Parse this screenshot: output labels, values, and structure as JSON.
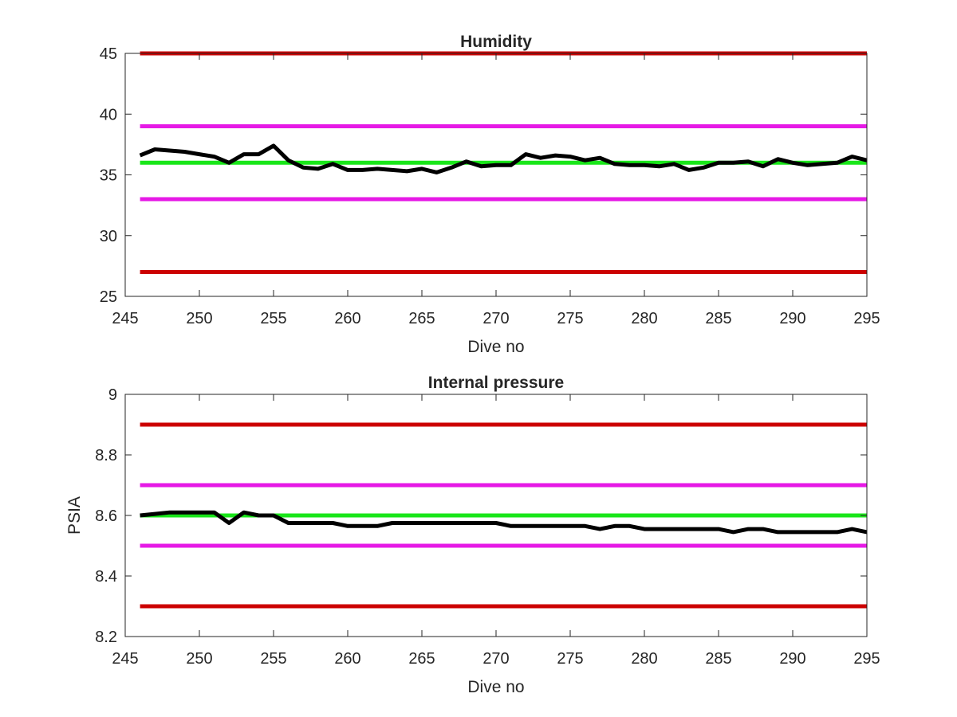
{
  "chart_data": [
    {
      "type": "line",
      "title": "Humidity",
      "xlabel": "Dive no",
      "ylabel": "",
      "xlim": [
        245,
        295
      ],
      "ylim": [
        25,
        45
      ],
      "xticks": [
        245,
        250,
        255,
        260,
        265,
        270,
        275,
        280,
        285,
        290,
        295
      ],
      "yticks": [
        25,
        30,
        35,
        40,
        45
      ],
      "xtick_labels": [
        "245",
        "250",
        "255",
        "260",
        "265",
        "270",
        "275",
        "280",
        "285",
        "290",
        "295"
      ],
      "ytick_labels": [
        "25",
        "30",
        "35",
        "40",
        "45"
      ],
      "grid": false,
      "reference_lines": [
        {
          "y": 45,
          "color": "#cc0000"
        },
        {
          "y": 39,
          "color": "#e619e6"
        },
        {
          "y": 36,
          "color": "#19e619"
        },
        {
          "y": 33,
          "color": "#e619e6"
        },
        {
          "y": 27,
          "color": "#cc0000"
        }
      ],
      "series": [
        {
          "color": "#000000",
          "x": [
            246,
            247,
            248,
            249,
            250,
            251,
            252,
            253,
            254,
            255,
            256,
            257,
            258,
            259,
            260,
            261,
            262,
            263,
            264,
            265,
            266,
            267,
            268,
            269,
            270,
            271,
            272,
            273,
            274,
            275,
            276,
            277,
            278,
            279,
            280,
            281,
            282,
            283,
            284,
            285,
            286,
            287,
            288,
            289,
            290,
            291,
            292,
            293,
            294,
            295
          ],
          "y": [
            36.6,
            37.1,
            37.0,
            36.9,
            36.7,
            36.5,
            36.0,
            36.7,
            36.7,
            37.4,
            36.2,
            35.6,
            35.5,
            35.9,
            35.4,
            35.4,
            35.5,
            35.4,
            35.3,
            35.5,
            35.2,
            35.6,
            36.1,
            35.7,
            35.8,
            35.8,
            36.7,
            36.4,
            36.6,
            36.5,
            36.2,
            36.4,
            35.9,
            35.8,
            35.8,
            35.7,
            35.9,
            35.4,
            35.6,
            36.0,
            36.0,
            36.1,
            35.7,
            36.3,
            36.0,
            35.8,
            35.9,
            36.0,
            36.5,
            36.2
          ]
        }
      ]
    },
    {
      "type": "line",
      "title": "Internal pressure",
      "xlabel": "Dive no",
      "ylabel": "PSIA",
      "xlim": [
        245,
        295
      ],
      "ylim": [
        8.2,
        9.0
      ],
      "xticks": [
        245,
        250,
        255,
        260,
        265,
        270,
        275,
        280,
        285,
        290,
        295
      ],
      "yticks": [
        8.2,
        8.4,
        8.6,
        8.8,
        9.0
      ],
      "xtick_labels": [
        "245",
        "250",
        "255",
        "260",
        "265",
        "270",
        "275",
        "280",
        "285",
        "290",
        "295"
      ],
      "ytick_labels": [
        "8.2",
        "8.4",
        "8.6",
        "8.8",
        "9"
      ],
      "grid": false,
      "reference_lines": [
        {
          "y": 8.9,
          "color": "#cc0000"
        },
        {
          "y": 8.7,
          "color": "#e619e6"
        },
        {
          "y": 8.6,
          "color": "#19e619"
        },
        {
          "y": 8.5,
          "color": "#e619e6"
        },
        {
          "y": 8.3,
          "color": "#cc0000"
        }
      ],
      "series": [
        {
          "color": "#000000",
          "x": [
            246,
            247,
            248,
            249,
            250,
            251,
            252,
            253,
            254,
            255,
            256,
            257,
            258,
            259,
            260,
            261,
            262,
            263,
            264,
            265,
            266,
            267,
            268,
            269,
            270,
            271,
            272,
            273,
            274,
            275,
            276,
            277,
            278,
            279,
            280,
            281,
            282,
            283,
            284,
            285,
            286,
            287,
            288,
            289,
            290,
            291,
            292,
            293,
            294,
            295
          ],
          "y": [
            8.6,
            8.605,
            8.61,
            8.61,
            8.61,
            8.61,
            8.575,
            8.61,
            8.6,
            8.6,
            8.575,
            8.575,
            8.575,
            8.575,
            8.565,
            8.565,
            8.565,
            8.575,
            8.575,
            8.575,
            8.575,
            8.575,
            8.575,
            8.575,
            8.575,
            8.565,
            8.565,
            8.565,
            8.565,
            8.565,
            8.565,
            8.555,
            8.565,
            8.565,
            8.555,
            8.555,
            8.555,
            8.555,
            8.555,
            8.555,
            8.545,
            8.555,
            8.555,
            8.545,
            8.545,
            8.545,
            8.545,
            8.545,
            8.555,
            8.545
          ]
        }
      ]
    }
  ]
}
